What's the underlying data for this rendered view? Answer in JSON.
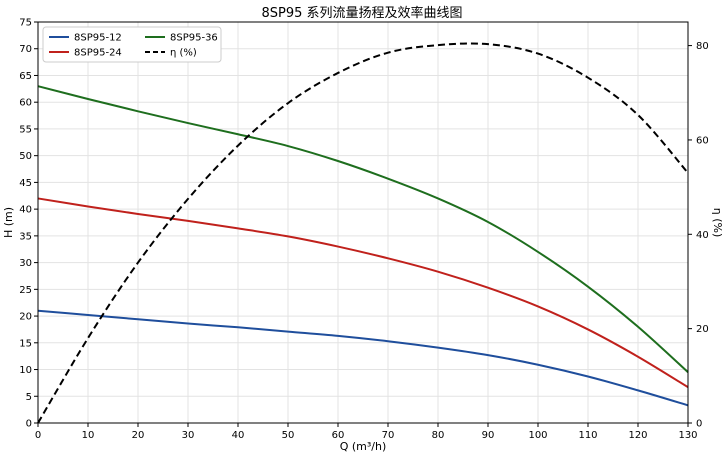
{
  "chart_data": {
    "type": "line",
    "title": "8SP95 系列流量扬程及效率曲线图",
    "xlabel": "Q (m³/h)",
    "ylabel": "H (m)",
    "y2label": "η (%)",
    "xlim": [
      0,
      130
    ],
    "ylim": [
      0,
      75
    ],
    "y2lim": [
      0,
      85
    ],
    "xticks": [
      0,
      10,
      20,
      30,
      40,
      50,
      60,
      70,
      80,
      90,
      100,
      110,
      120,
      130
    ],
    "yticks": [
      0,
      5,
      10,
      15,
      20,
      25,
      30,
      35,
      40,
      45,
      50,
      55,
      60,
      65,
      70,
      75
    ],
    "y2ticks": [
      0,
      20,
      40,
      60,
      80
    ],
    "grid": true,
    "legend_position": "top-left",
    "x": [
      0,
      10,
      20,
      30,
      40,
      50,
      60,
      70,
      80,
      90,
      100,
      110,
      120,
      130
    ],
    "series": [
      {
        "name": "8SP95-12",
        "axis": "left",
        "color": "#1f4e9c",
        "style": "solid",
        "values": [
          21.0,
          20.2,
          19.4,
          18.6,
          17.9,
          17.1,
          16.3,
          15.3,
          14.1,
          12.7,
          10.9,
          8.7,
          6.1,
          3.3
        ]
      },
      {
        "name": "8SP95-24",
        "axis": "left",
        "color": "#c0211c",
        "style": "solid",
        "values": [
          42.0,
          40.5,
          39.1,
          37.8,
          36.4,
          34.9,
          33.0,
          30.8,
          28.3,
          25.3,
          21.8,
          17.5,
          12.4,
          6.7
        ]
      },
      {
        "name": "8SP95-36",
        "axis": "left",
        "color": "#1e6e1e",
        "style": "solid",
        "values": [
          63.0,
          60.6,
          58.3,
          56.1,
          54.0,
          51.8,
          49.0,
          45.7,
          42.0,
          37.6,
          32.0,
          25.5,
          18.0,
          9.5
        ]
      },
      {
        "name": "η (%)",
        "axis": "right",
        "color": "#000000",
        "style": "dashed",
        "values": [
          0,
          18.0,
          34.0,
          47.5,
          58.8,
          67.8,
          74.2,
          78.5,
          80.1,
          80.3,
          78.3,
          73.2,
          65.3,
          53.0
        ]
      }
    ]
  }
}
